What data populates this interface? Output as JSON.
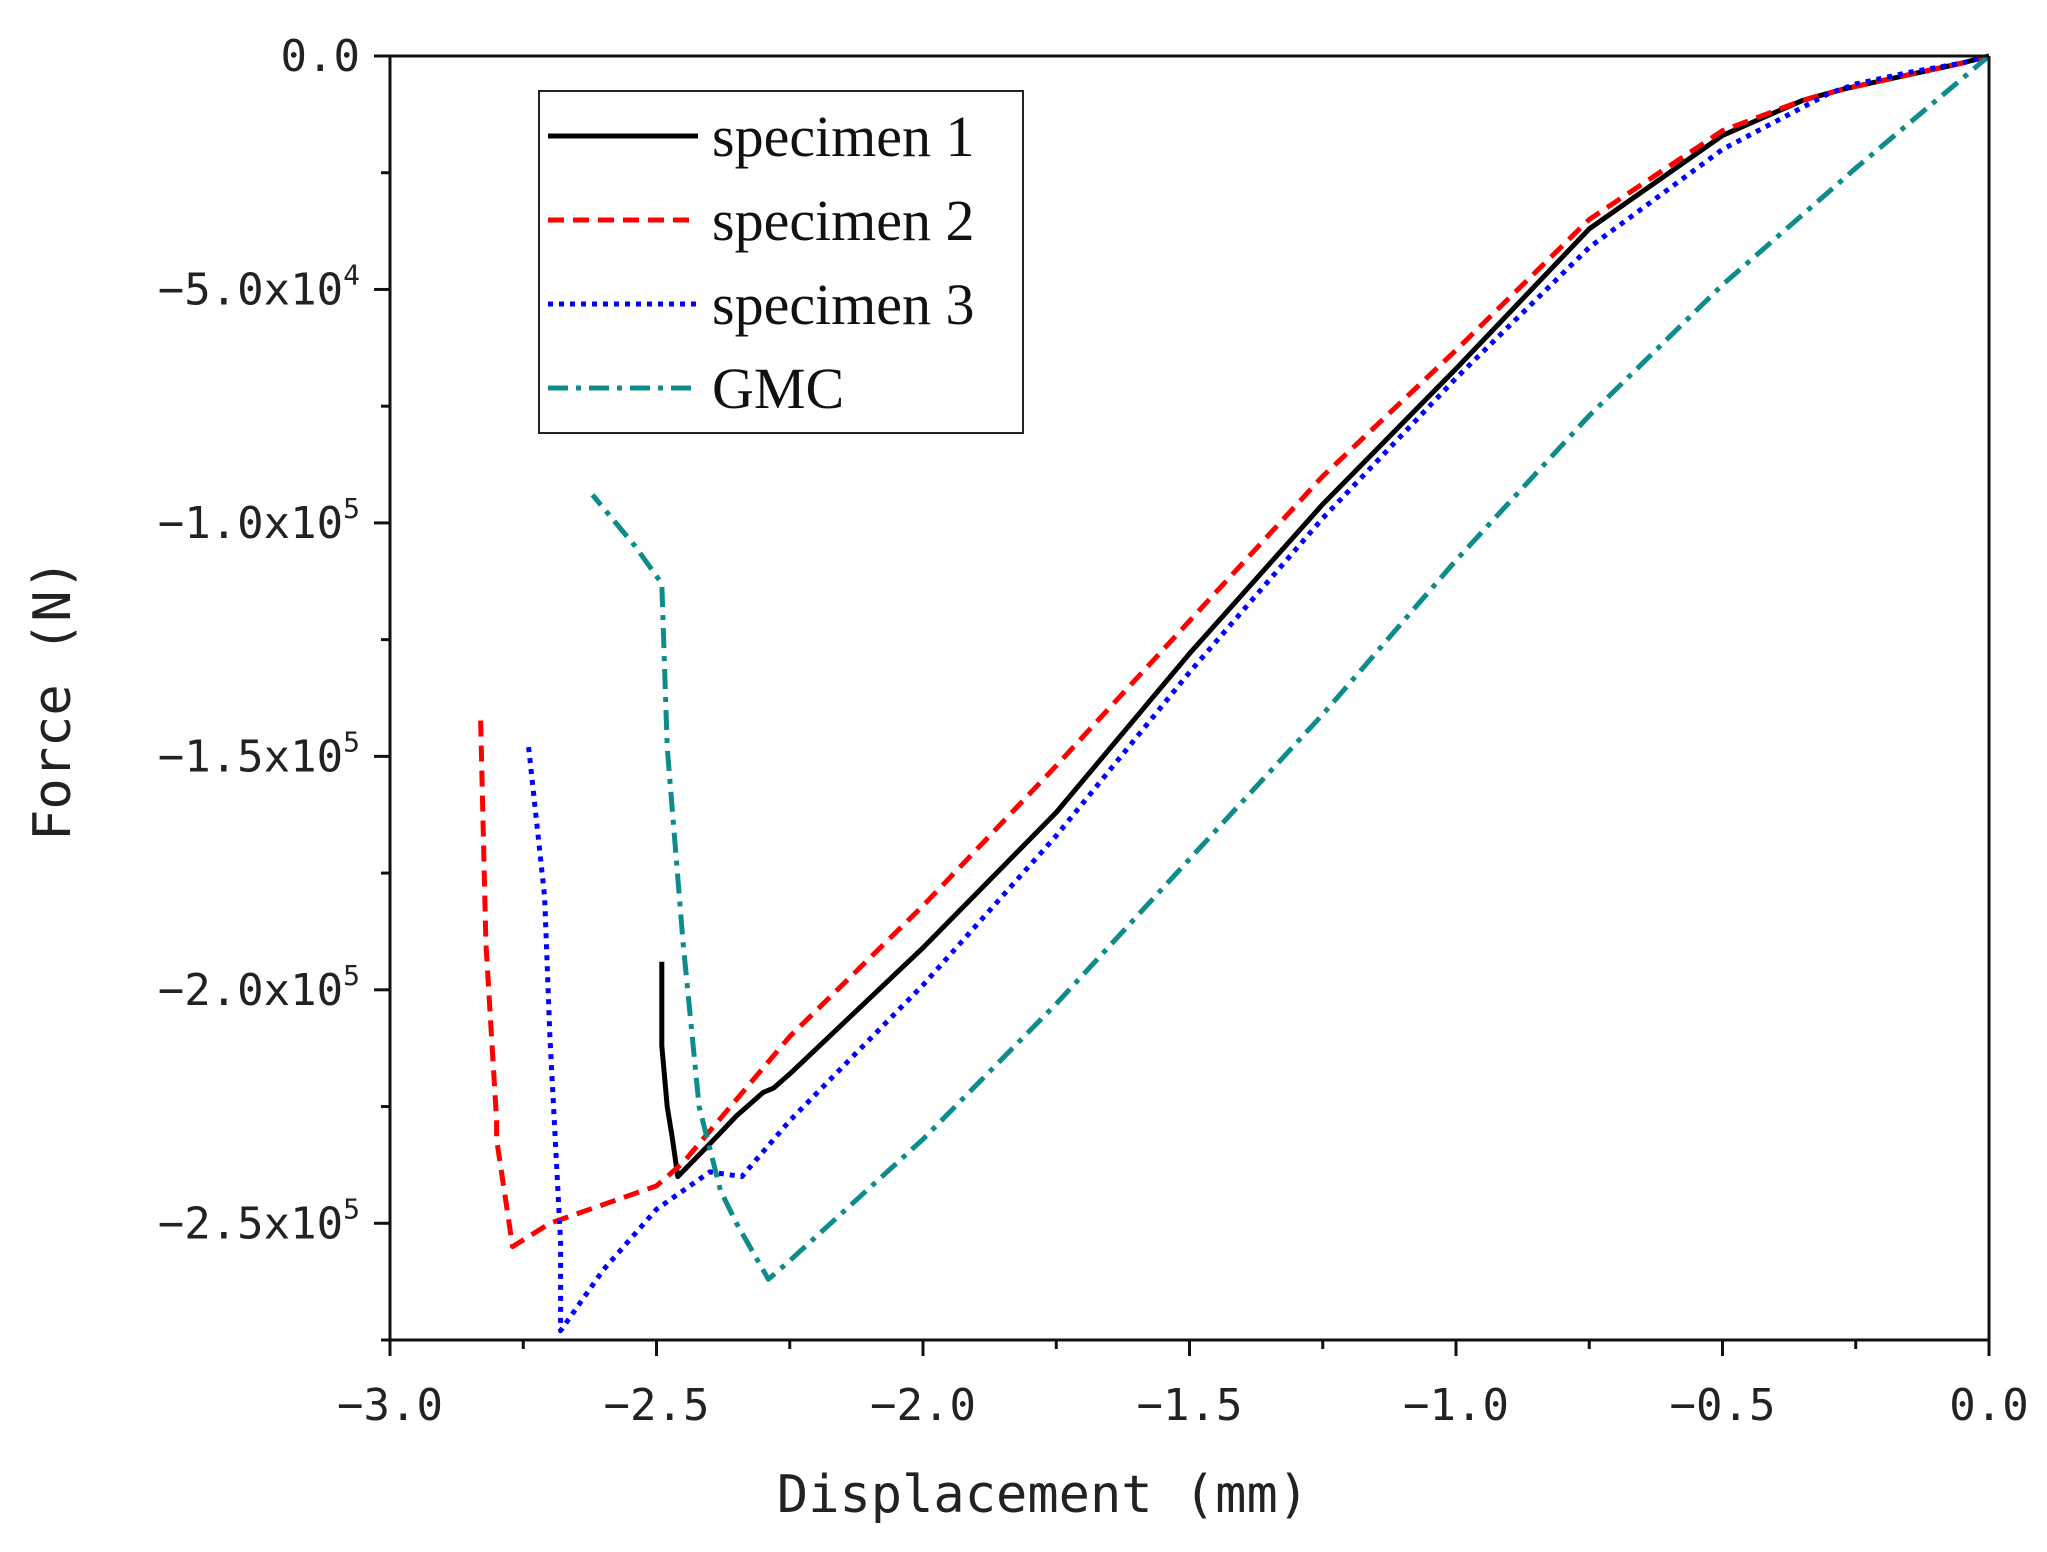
{
  "chart_data": {
    "type": "line",
    "title": "",
    "xlabel": "Displacement (mm)",
    "ylabel": "Force (N)",
    "xlim": [
      -3.0,
      0.0
    ],
    "ylim": [
      -275000,
      0
    ],
    "x_ticks": [
      {
        "value": -3.0,
        "label": "-3.0"
      },
      {
        "value": -2.5,
        "label": "-2.5"
      },
      {
        "value": -2.0,
        "label": "-2.0"
      },
      {
        "value": -1.5,
        "label": "-1.5"
      },
      {
        "value": -1.0,
        "label": "-1.0"
      },
      {
        "value": -0.5,
        "label": "-0.5"
      },
      {
        "value": 0.0,
        "label": "0.0"
      }
    ],
    "y_ticks": [
      {
        "value": 0,
        "mantissa": "0.0",
        "exponent": ""
      },
      {
        "value": -50000,
        "mantissa": "-5.0x10",
        "exponent": "4"
      },
      {
        "value": -100000,
        "mantissa": "-1.0x10",
        "exponent": "5"
      },
      {
        "value": -150000,
        "mantissa": "-1.5x10",
        "exponent": "5"
      },
      {
        "value": -200000,
        "mantissa": "-2.0x10",
        "exponent": "5"
      },
      {
        "value": -250000,
        "mantissa": "-2.5x10",
        "exponent": "5"
      }
    ],
    "legend_position": "top-left",
    "series": [
      {
        "name": "specimen 1",
        "color": "#000000",
        "dash": "solid",
        "points": [
          [
            0.0,
            0
          ],
          [
            -0.05,
            -1500
          ],
          [
            -0.15,
            -4000
          ],
          [
            -0.27,
            -7000
          ],
          [
            -0.35,
            -9500
          ],
          [
            -0.5,
            -17000
          ],
          [
            -0.75,
            -37000
          ],
          [
            -1.0,
            -67000
          ],
          [
            -1.25,
            -96000
          ],
          [
            -1.5,
            -128000
          ],
          [
            -1.75,
            -162000
          ],
          [
            -2.0,
            -191000
          ],
          [
            -2.25,
            -218000
          ],
          [
            -2.28,
            -221000
          ],
          [
            -2.3,
            -222000
          ],
          [
            -2.35,
            -227000
          ],
          [
            -2.4,
            -233000
          ],
          [
            -2.46,
            -240000
          ],
          [
            -2.47,
            -232000
          ],
          [
            -2.48,
            -225000
          ],
          [
            -2.49,
            -212000
          ],
          [
            -2.49,
            -194000
          ]
        ]
      },
      {
        "name": "specimen 2",
        "color": "#ff0000",
        "dash": "dashed",
        "points": [
          [
            0.0,
            0
          ],
          [
            -0.05,
            -1500
          ],
          [
            -0.15,
            -4000
          ],
          [
            -0.27,
            -7000
          ],
          [
            -0.35,
            -9500
          ],
          [
            -0.5,
            -16000
          ],
          [
            -0.75,
            -35000
          ],
          [
            -1.0,
            -63000
          ],
          [
            -1.25,
            -90000
          ],
          [
            -1.5,
            -121000
          ],
          [
            -1.75,
            -152000
          ],
          [
            -1.95,
            -176000
          ],
          [
            -2.0,
            -182000
          ],
          [
            -2.25,
            -210000
          ],
          [
            -2.45,
            -237000
          ],
          [
            -2.5,
            -242000
          ],
          [
            -2.6,
            -246000
          ],
          [
            -2.65,
            -248000
          ],
          [
            -2.7,
            -250000
          ],
          [
            -2.77,
            -255000
          ],
          [
            -2.8,
            -232000
          ],
          [
            -2.8,
            -228000
          ],
          [
            -2.82,
            -190000
          ],
          [
            -2.83,
            -142000
          ]
        ]
      },
      {
        "name": "specimen 3",
        "color": "#0000ff",
        "dash": "dotted",
        "points": [
          [
            0.0,
            0
          ],
          [
            -0.05,
            -1500
          ],
          [
            -0.15,
            -3500
          ],
          [
            -0.25,
            -6000
          ],
          [
            -0.3,
            -8000
          ],
          [
            -0.5,
            -20000
          ],
          [
            -0.75,
            -41000
          ],
          [
            -1.0,
            -69000
          ],
          [
            -1.25,
            -99000
          ],
          [
            -1.5,
            -132000
          ],
          [
            -1.75,
            -167000
          ],
          [
            -2.0,
            -199000
          ],
          [
            -2.25,
            -228000
          ],
          [
            -2.34,
            -240000
          ],
          [
            -2.4,
            -239000
          ],
          [
            -2.5,
            -247000
          ],
          [
            -2.6,
            -260000
          ],
          [
            -2.68,
            -273000
          ],
          [
            -2.68,
            -254000
          ],
          [
            -2.7,
            -210000
          ],
          [
            -2.71,
            -180000
          ],
          [
            -2.74,
            -148000
          ]
        ]
      },
      {
        "name": "GMC",
        "color": "#0e8c8c",
        "dash": "dash-dot",
        "points": [
          [
            0.0,
            0
          ],
          [
            -0.25,
            -24000
          ],
          [
            -0.5,
            -49000
          ],
          [
            -0.75,
            -77000
          ],
          [
            -1.0,
            -108000
          ],
          [
            -1.25,
            -141000
          ],
          [
            -1.5,
            -172000
          ],
          [
            -1.75,
            -203000
          ],
          [
            -2.0,
            -232000
          ],
          [
            -2.25,
            -258000
          ],
          [
            -2.29,
            -262000
          ],
          [
            -2.35,
            -250000
          ],
          [
            -2.38,
            -243000
          ],
          [
            -2.42,
            -225000
          ],
          [
            -2.45,
            -190000
          ],
          [
            -2.48,
            -148000
          ],
          [
            -2.49,
            -113000
          ],
          [
            -2.54,
            -105000
          ],
          [
            -2.62,
            -94000
          ]
        ]
      }
    ]
  }
}
